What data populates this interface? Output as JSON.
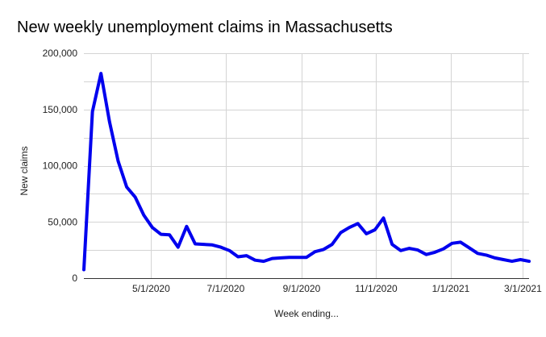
{
  "chart_data": {
    "type": "line",
    "title": "New weekly unemployment claims in Massachusetts",
    "xlabel": "Week ending...",
    "ylabel": "New claims",
    "ylim": [
      0,
      200000
    ],
    "xlim": [
      "2020-03-07",
      "2021-03-06"
    ],
    "y_ticks": [
      0,
      50000,
      100000,
      150000,
      200000
    ],
    "y_tick_labels": [
      "0",
      "50,000",
      "100,000",
      "150,000",
      "200,000"
    ],
    "x_ticks": [
      "2020-05-01",
      "2020-07-01",
      "2020-09-01",
      "2020-11-01",
      "2021-01-01",
      "2021-03-01"
    ],
    "x_tick_labels": [
      "5/1/2020",
      "7/1/2020",
      "9/1/2020",
      "11/1/2020",
      "1/1/2021",
      "3/1/2021"
    ],
    "grid": true,
    "legend": "none",
    "series": [
      {
        "color": "#0000ee",
        "x": [
          "2020-03-07",
          "2020-03-14",
          "2020-03-21",
          "2020-03-28",
          "2020-04-04",
          "2020-04-11",
          "2020-04-18",
          "2020-04-25",
          "2020-05-02",
          "2020-05-09",
          "2020-05-16",
          "2020-05-23",
          "2020-05-30",
          "2020-06-06",
          "2020-06-13",
          "2020-06-20",
          "2020-06-27",
          "2020-07-04",
          "2020-07-11",
          "2020-07-18",
          "2020-07-25",
          "2020-08-01",
          "2020-08-08",
          "2020-08-15",
          "2020-08-22",
          "2020-08-29",
          "2020-09-05",
          "2020-09-12",
          "2020-09-19",
          "2020-09-26",
          "2020-10-03",
          "2020-10-10",
          "2020-10-17",
          "2020-10-24",
          "2020-10-31",
          "2020-11-07",
          "2020-11-14",
          "2020-11-21",
          "2020-11-28",
          "2020-12-05",
          "2020-12-12",
          "2020-12-19",
          "2020-12-26",
          "2021-01-02",
          "2021-01-09",
          "2021-01-16",
          "2021-01-23",
          "2021-01-30",
          "2021-02-06",
          "2021-02-13",
          "2021-02-20",
          "2021-02-27",
          "2021-03-06"
        ],
        "y": [
          7500,
          148000,
          182000,
          139000,
          104000,
          81000,
          72000,
          56000,
          45000,
          39000,
          38500,
          27500,
          46000,
          30500,
          30000,
          29500,
          27500,
          24500,
          19000,
          20000,
          16000,
          15000,
          17500,
          18000,
          18500,
          18500,
          18500,
          23500,
          25500,
          30000,
          40500,
          45000,
          48500,
          39500,
          43000,
          53500,
          30000,
          24500,
          26500,
          25000,
          21000,
          23000,
          26000,
          31000,
          32000,
          27000,
          22000,
          20500,
          18000,
          16500,
          15000,
          16500,
          15000
        ]
      }
    ]
  }
}
